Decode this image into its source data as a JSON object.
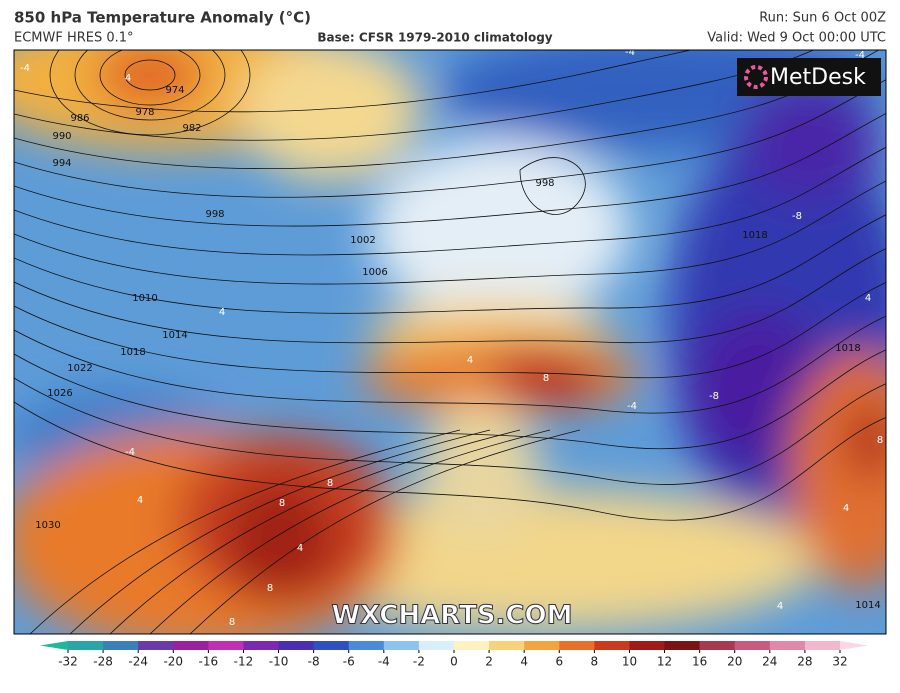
{
  "header": {
    "title": "850 hPa Temperature Anomaly (°C)",
    "model": "ECMWF HRES 0.1°",
    "base": "Base: CFSR 1979-2010 climatology",
    "run": "Run: Sun 6 Oct 00Z",
    "valid": "Valid: Wed 9 Oct 00:00 UTC"
  },
  "logo": "MetDesk",
  "watermark": "WXCHARTS.COM",
  "isobar_labels": [
    "974",
    "978",
    "982",
    "986",
    "990",
    "994",
    "998",
    "1002",
    "1006",
    "1010",
    "1014",
    "1018",
    "1022",
    "1026",
    "1030",
    "1018",
    "1014",
    "1018",
    "998"
  ],
  "anomaly_labels": [
    "-4",
    "4",
    "4",
    "-4",
    "4",
    "8",
    "8",
    "4",
    "8",
    "8",
    "4",
    "8",
    "-4",
    "-8",
    "-8",
    "-4",
    "4",
    "4",
    "8",
    "-4",
    "4"
  ],
  "colorbar": {
    "ticks": [
      -32,
      -28,
      -24,
      -20,
      -16,
      -12,
      -10,
      -8,
      -6,
      -4,
      -2,
      0,
      2,
      4,
      6,
      8,
      10,
      12,
      16,
      20,
      24,
      28,
      32
    ],
    "colors": [
      "#1fb89c",
      "#2aa6a8",
      "#3a80b8",
      "#6a3aa8",
      "#9a20a0",
      "#c030b0",
      "#7a2ab0",
      "#4a30b0",
      "#2e50c0",
      "#4a8ad8",
      "#8ec4ec",
      "#d8eef8",
      "#fff2c0",
      "#f6d27a",
      "#f2a440",
      "#e8702a",
      "#cc3a1e",
      "#a01a18",
      "#7a1414",
      "#a83a50",
      "#c85a80",
      "#e088a8",
      "#f0b8cc",
      "#f8d8e4"
    ]
  }
}
